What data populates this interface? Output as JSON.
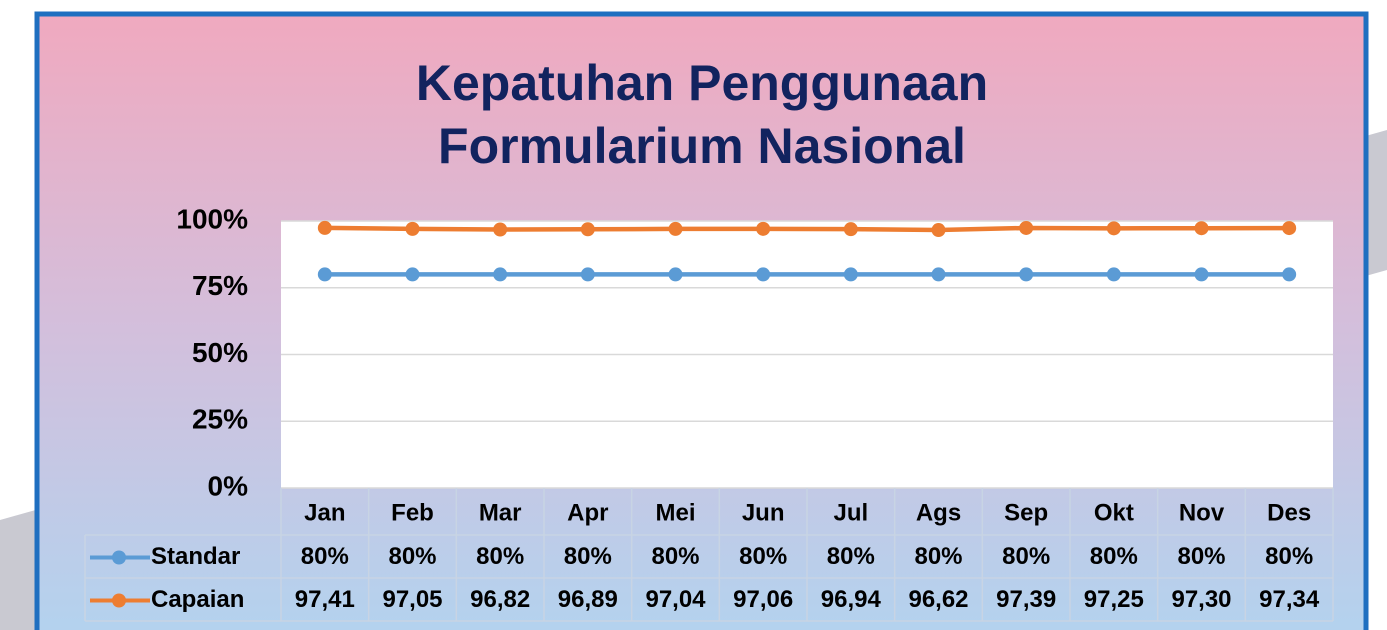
{
  "chart_data": {
    "type": "line",
    "title": [
      "Kepatuhan Penggunaan",
      "Formularium Nasional"
    ],
    "categories": [
      "Jan",
      "Feb",
      "Mar",
      "Apr",
      "Mei",
      "Jun",
      "Jul",
      "Ags",
      "Sep",
      "Okt",
      "Nov",
      "Des"
    ],
    "series": [
      {
        "name": "Standar",
        "color": "#5b9bd5",
        "values": [
          80,
          80,
          80,
          80,
          80,
          80,
          80,
          80,
          80,
          80,
          80,
          80
        ],
        "value_labels": [
          "80%",
          "80%",
          "80%",
          "80%",
          "80%",
          "80%",
          "80%",
          "80%",
          "80%",
          "80%",
          "80%",
          "80%"
        ]
      },
      {
        "name": "Capaian",
        "color": "#ed7d31",
        "values": [
          97.41,
          97.05,
          96.82,
          96.89,
          97.04,
          97.06,
          96.94,
          96.62,
          97.39,
          97.25,
          97.3,
          97.34
        ],
        "value_labels": [
          "97,41",
          "97,05",
          "96,82",
          "96,89",
          "97,04",
          "97,06",
          "96,94",
          "96,62",
          "97,39",
          "97,25",
          "97,30",
          "97,34"
        ]
      }
    ],
    "ylim": [
      0,
      100
    ],
    "yticks": [
      {
        "value": 0,
        "label": "0%"
      },
      {
        "value": 25,
        "label": "25%"
      },
      {
        "value": 50,
        "label": "50%"
      },
      {
        "value": 75,
        "label": "75%"
      },
      {
        "value": 100,
        "label": "100%"
      }
    ],
    "grid": true
  }
}
